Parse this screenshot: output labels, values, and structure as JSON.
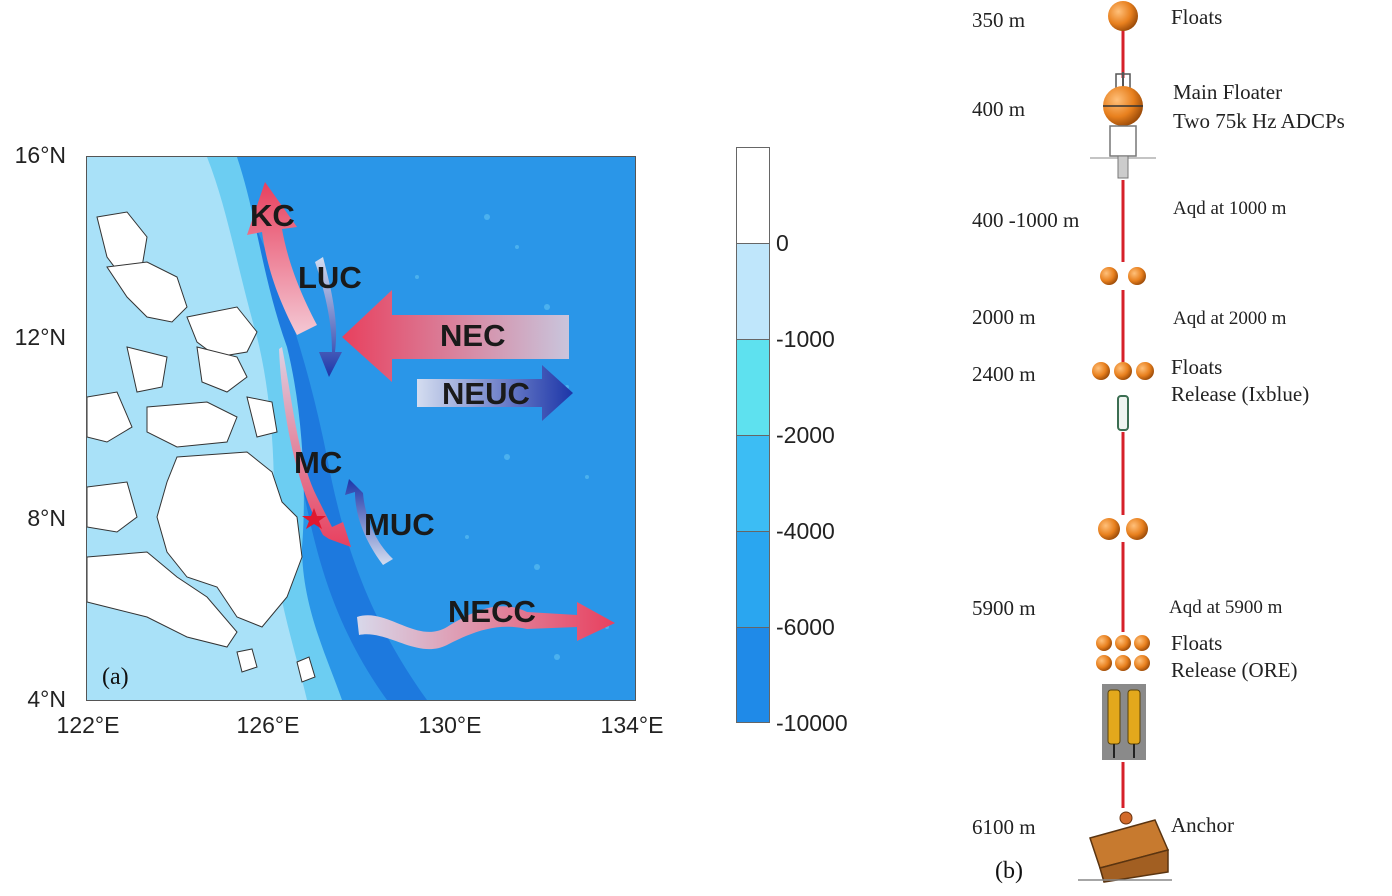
{
  "panel_a": {
    "tag": "(a)",
    "lat_labels": [
      "16°N",
      "12°N",
      "8°N",
      "4°N"
    ],
    "lon_labels": [
      "122°E",
      "126°E",
      "130°E",
      "134°E"
    ],
    "currents": {
      "kc": "KC",
      "luc": "LUC",
      "nec": "NEC",
      "neuc": "NEUC",
      "mc": "MC",
      "muc": "MUC",
      "necc": "NECC"
    },
    "colorbar": {
      "labels": [
        "0",
        "-1000",
        "-2000",
        "-4000",
        "-6000",
        "-10000"
      ],
      "colors": [
        "#ffffff",
        "#bfe6fb",
        "#5ee1ef",
        "#3cbdf4",
        "#2aa6f0",
        "#1f8ae8"
      ]
    },
    "colors": {
      "ocean": "#2a96e8",
      "deep_trench": "#1a72db",
      "shelf": "#6ccdf2",
      "land": "#ffffff",
      "warm_arrow": "#e8405e",
      "cold_arrow": "#1c35a8",
      "station_star": "#e0182f"
    }
  },
  "panel_b": {
    "tag": "(b)",
    "depths": {
      "d350": "350 m",
      "d400": "400 m",
      "d400_1000": "400 -1000 m",
      "d2000": "2000 m",
      "d2400": "2400 m",
      "d5900": "5900 m",
      "d6100": "6100 m"
    },
    "annotations": {
      "floats_top": "Floats",
      "main_floater": "Main Floater",
      "adcps": "Two 75k Hz ADCPs",
      "aqd1000": "Aqd at 1000 m",
      "aqd2000": "Aqd at 2000 m",
      "floats_2400": "Floats",
      "release_ixblue": "Release (Ixblue)",
      "aqd5900": "Aqd at 5900 m",
      "floats_5900": "Floats",
      "release_ore": "Release (ORE)",
      "anchor": "Anchor"
    },
    "colors": {
      "line": "#d6202a",
      "float": "#e8801e",
      "float_dark": "#9a4a08"
    }
  }
}
